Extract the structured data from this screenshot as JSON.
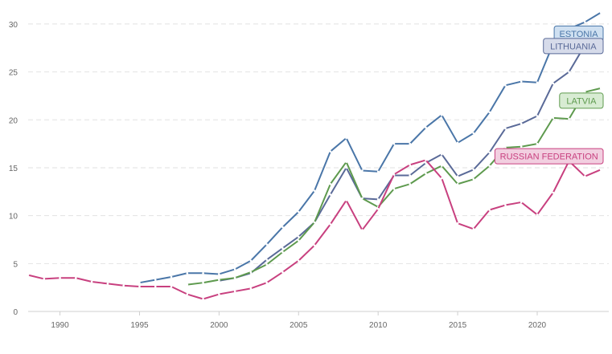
{
  "chart_data": {
    "type": "line",
    "title": "",
    "xlabel": "",
    "ylabel": "",
    "xlim": [
      1988,
      2024.5
    ],
    "ylim": [
      0,
      31
    ],
    "grid": "horizontal dashed",
    "x_ticks": [
      1990,
      1995,
      2000,
      2005,
      2010,
      2015,
      2020
    ],
    "y_ticks": [
      0,
      5,
      10,
      15,
      20,
      25,
      30
    ],
    "series": [
      {
        "name": "ESTONIA",
        "color": "#4a76a8",
        "label_fill": "#cfe0f1",
        "points": [
          [
            1995,
            3.0
          ],
          [
            1996,
            3.3
          ],
          [
            1997,
            3.6
          ],
          [
            1998,
            4.0
          ],
          [
            1999,
            4.0
          ],
          [
            2000,
            3.9
          ],
          [
            2001,
            4.4
          ],
          [
            2002,
            5.3
          ],
          [
            2003,
            7.0
          ],
          [
            2004,
            8.8
          ],
          [
            2005,
            10.4
          ],
          [
            2006,
            12.6
          ],
          [
            2007,
            16.7
          ],
          [
            2008,
            18.1
          ],
          [
            2009,
            14.7
          ],
          [
            2010,
            14.6
          ],
          [
            2011,
            17.5
          ],
          [
            2012,
            17.5
          ],
          [
            2013,
            19.2
          ],
          [
            2014,
            20.5
          ],
          [
            2015,
            17.6
          ],
          [
            2016,
            18.6
          ],
          [
            2017,
            20.8
          ],
          [
            2018,
            23.6
          ],
          [
            2019,
            24.0
          ],
          [
            2020,
            23.9
          ],
          [
            2021,
            27.9
          ],
          [
            2022,
            29.5
          ],
          [
            2023,
            30.2
          ],
          [
            2024,
            31.2
          ]
        ]
      },
      {
        "name": "LITHUANIA",
        "color": "#5a6a98",
        "label_fill": "#d6dbea",
        "points": [
          [
            2000,
            3.2
          ],
          [
            2001,
            3.5
          ],
          [
            2002,
            4.0
          ],
          [
            2003,
            5.4
          ],
          [
            2004,
            6.6
          ],
          [
            2005,
            7.8
          ],
          [
            2006,
            9.3
          ],
          [
            2007,
            12.2
          ],
          [
            2008,
            15.0
          ],
          [
            2009,
            11.8
          ],
          [
            2010,
            11.7
          ],
          [
            2011,
            14.2
          ],
          [
            2012,
            14.2
          ],
          [
            2013,
            15.5
          ],
          [
            2014,
            16.4
          ],
          [
            2015,
            14.1
          ],
          [
            2016,
            14.8
          ],
          [
            2017,
            16.6
          ],
          [
            2018,
            19.1
          ],
          [
            2019,
            19.6
          ],
          [
            2020,
            20.4
          ],
          [
            2021,
            23.8
          ],
          [
            2022,
            25.0
          ],
          [
            2023,
            27.8
          ],
          [
            2024,
            29.0
          ]
        ]
      },
      {
        "name": "LATVIA",
        "color": "#5e9a4e",
        "label_fill": "#d8ecd3",
        "points": [
          [
            1998,
            2.8
          ],
          [
            1999,
            3.0
          ],
          [
            2000,
            3.3
          ],
          [
            2001,
            3.5
          ],
          [
            2002,
            4.1
          ],
          [
            2003,
            4.9
          ],
          [
            2004,
            6.2
          ],
          [
            2005,
            7.4
          ],
          [
            2006,
            9.3
          ],
          [
            2007,
            13.3
          ],
          [
            2008,
            15.6
          ],
          [
            2009,
            11.8
          ],
          [
            2010,
            10.9
          ],
          [
            2011,
            12.8
          ],
          [
            2012,
            13.3
          ],
          [
            2013,
            14.4
          ],
          [
            2014,
            15.2
          ],
          [
            2015,
            13.3
          ],
          [
            2016,
            13.8
          ],
          [
            2017,
            15.2
          ],
          [
            2018,
            17.1
          ],
          [
            2019,
            17.2
          ],
          [
            2020,
            17.5
          ],
          [
            2021,
            20.2
          ],
          [
            2022,
            20.1
          ],
          [
            2023,
            22.9
          ],
          [
            2024,
            23.3
          ]
        ]
      },
      {
        "name": "RUSSIAN FEDERATION",
        "color": "#c8407f",
        "label_fill": "#f2cfe0",
        "points": [
          [
            1988,
            3.8
          ],
          [
            1989,
            3.4
          ],
          [
            1990,
            3.5
          ],
          [
            1991,
            3.5
          ],
          [
            1992,
            3.1
          ],
          [
            1993,
            2.9
          ],
          [
            1994,
            2.7
          ],
          [
            1995,
            2.6
          ],
          [
            1996,
            2.6
          ],
          [
            1997,
            2.6
          ],
          [
            1998,
            1.8
          ],
          [
            1999,
            1.3
          ],
          [
            2000,
            1.8
          ],
          [
            2001,
            2.1
          ],
          [
            2002,
            2.4
          ],
          [
            2003,
            3.0
          ],
          [
            2004,
            4.1
          ],
          [
            2005,
            5.3
          ],
          [
            2006,
            6.9
          ],
          [
            2007,
            9.1
          ],
          [
            2008,
            11.6
          ],
          [
            2009,
            8.5
          ],
          [
            2010,
            10.7
          ],
          [
            2011,
            14.3
          ],
          [
            2012,
            15.3
          ],
          [
            2013,
            15.8
          ],
          [
            2014,
            13.9
          ],
          [
            2015,
            9.2
          ],
          [
            2016,
            8.6
          ],
          [
            2017,
            10.6
          ],
          [
            2018,
            11.1
          ],
          [
            2019,
            11.4
          ],
          [
            2020,
            10.1
          ],
          [
            2021,
            12.4
          ],
          [
            2022,
            15.7
          ],
          [
            2023,
            14.1
          ],
          [
            2024,
            14.8
          ]
        ]
      }
    ]
  }
}
